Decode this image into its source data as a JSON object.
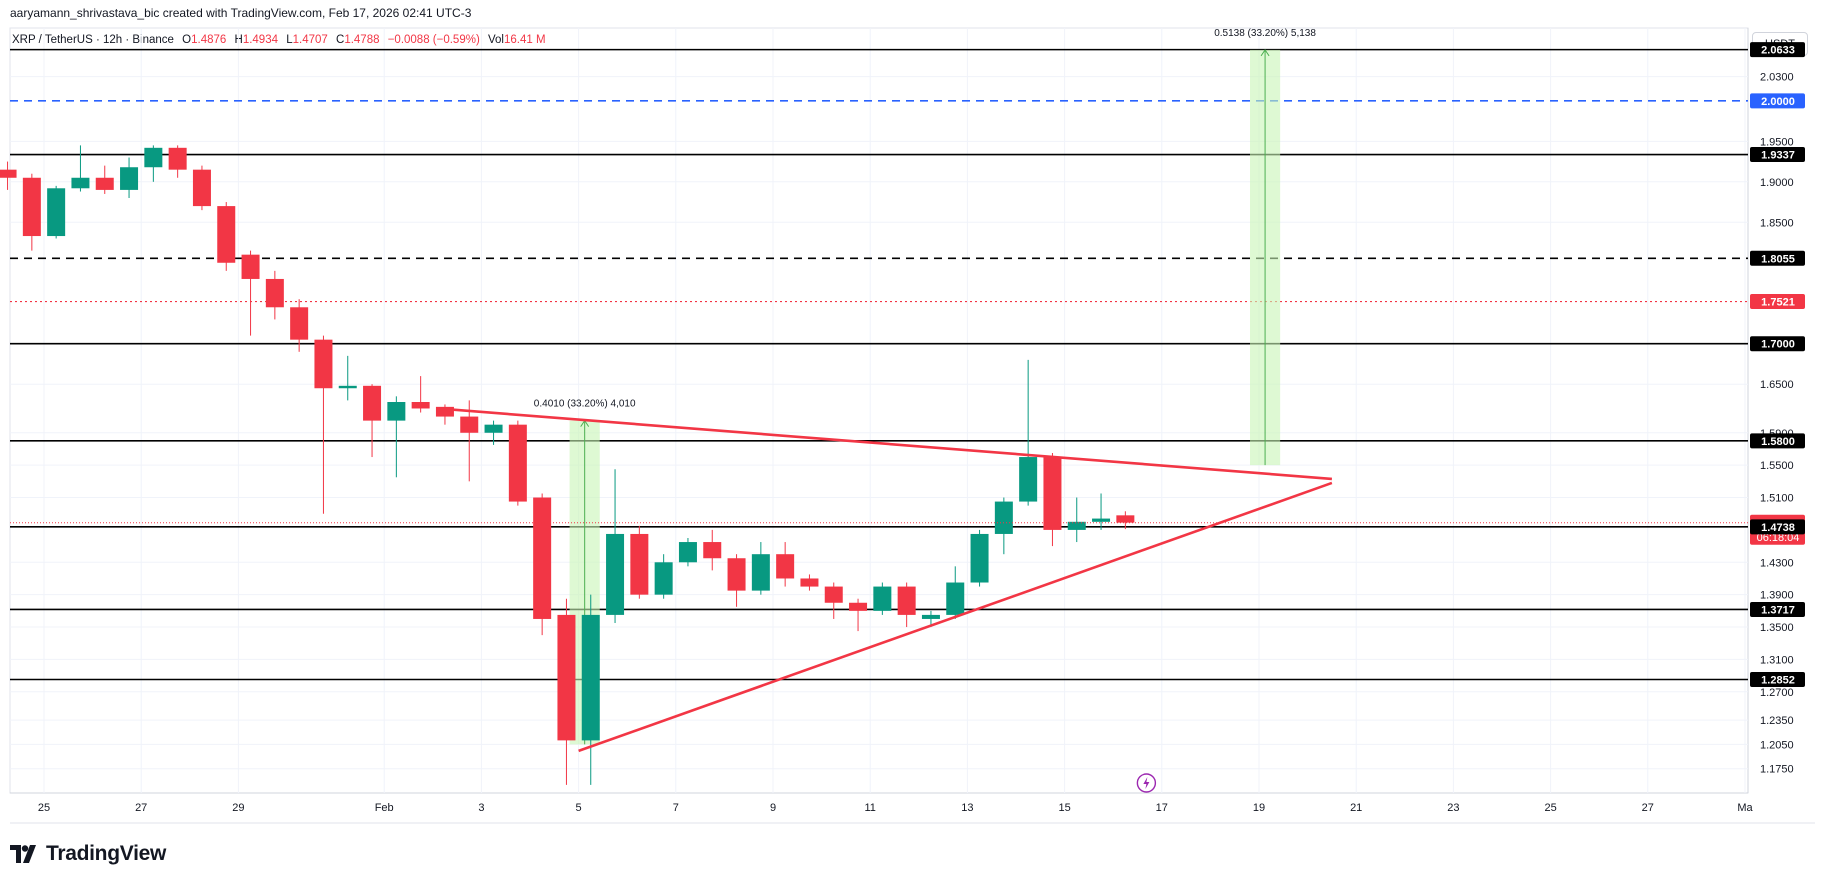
{
  "attribution": "aaryamann_shrivastava_bic created with TradingView.com, Feb 17, 2026 02:41 UTC-3",
  "legend": {
    "symbol": "XRP / TetherUS · 12h · Binance",
    "o_label": "O",
    "o": "1.4876",
    "h_label": "H",
    "h": "1.4934",
    "l_label": "L",
    "l": "1.4707",
    "c_label": "C",
    "c": "1.4788",
    "change": "−0.0088 (−0.59%)",
    "vol_label": "Vol",
    "vol": "16.41 M"
  },
  "currency": "USDT",
  "brand": "TradingView",
  "colors": {
    "up": "#089981",
    "down": "#f23645",
    "trend": "#f23645",
    "level": "#000000",
    "blue_level": "#2962ff",
    "red_level": "#f23645",
    "measure_fill": "#c8f5b5",
    "measure_line": "#4caf50"
  },
  "chart_data": {
    "type": "candlestick",
    "symbol": "XRP / TetherUS",
    "interval": "12h",
    "ylim": [
      1.145,
      2.09
    ],
    "y_ticks": [
      "1.1750",
      "1.2050",
      "1.2350",
      "1.2700",
      "1.3100",
      "1.3500",
      "1.3900",
      "1.4300",
      "1.5100",
      "1.5500",
      "1.5900",
      "1.6500",
      "1.8500",
      "1.9000",
      "1.9500",
      "2.0300"
    ],
    "x_ticks": [
      {
        "label": "25",
        "d": 0
      },
      {
        "label": "27",
        "d": 2
      },
      {
        "label": "29",
        "d": 4
      },
      {
        "label": "Feb",
        "d": 7
      },
      {
        "label": "3",
        "d": 9
      },
      {
        "label": "5",
        "d": 11
      },
      {
        "label": "7",
        "d": 13
      },
      {
        "label": "9",
        "d": 15
      },
      {
        "label": "11",
        "d": 17
      },
      {
        "label": "13",
        "d": 19
      },
      {
        "label": "15",
        "d": 21
      },
      {
        "label": "17",
        "d": 23
      },
      {
        "label": "19",
        "d": 25
      },
      {
        "label": "21",
        "d": 27
      },
      {
        "label": "23",
        "d": 29
      },
      {
        "label": "25",
        "d": 31
      },
      {
        "label": "27",
        "d": 33
      },
      {
        "label": "Ma",
        "d": 35
      }
    ],
    "candles": [
      {
        "d": -0.75,
        "o": 1.915,
        "h": 1.925,
        "l": 1.89,
        "c": 1.905
      },
      {
        "d": -0.25,
        "o": 1.905,
        "h": 1.91,
        "l": 1.815,
        "c": 1.833
      },
      {
        "d": 0.25,
        "o": 1.833,
        "h": 1.895,
        "l": 1.83,
        "c": 1.892
      },
      {
        "d": 0.75,
        "o": 1.892,
        "h": 1.945,
        "l": 1.888,
        "c": 1.905
      },
      {
        "d": 1.25,
        "o": 1.905,
        "h": 1.92,
        "l": 1.885,
        "c": 1.89
      },
      {
        "d": 1.75,
        "o": 1.89,
        "h": 1.93,
        "l": 1.88,
        "c": 1.918
      },
      {
        "d": 2.25,
        "o": 1.918,
        "h": 1.945,
        "l": 1.9,
        "c": 1.942
      },
      {
        "d": 2.75,
        "o": 1.942,
        "h": 1.945,
        "l": 1.905,
        "c": 1.915
      },
      {
        "d": 3.25,
        "o": 1.915,
        "h": 1.92,
        "l": 1.865,
        "c": 1.87
      },
      {
        "d": 3.75,
        "o": 1.87,
        "h": 1.875,
        "l": 1.79,
        "c": 1.8
      },
      {
        "d": 4.25,
        "o": 1.81,
        "h": 1.815,
        "l": 1.71,
        "c": 1.78
      },
      {
        "d": 4.75,
        "o": 1.78,
        "h": 1.79,
        "l": 1.73,
        "c": 1.745
      },
      {
        "d": 5.25,
        "o": 1.745,
        "h": 1.755,
        "l": 1.69,
        "c": 1.705
      },
      {
        "d": 5.75,
        "o": 1.705,
        "h": 1.71,
        "l": 1.49,
        "c": 1.645
      },
      {
        "d": 6.25,
        "o": 1.645,
        "h": 1.685,
        "l": 1.63,
        "c": 1.648
      },
      {
        "d": 6.75,
        "o": 1.648,
        "h": 1.65,
        "l": 1.56,
        "c": 1.605
      },
      {
        "d": 7.25,
        "o": 1.605,
        "h": 1.635,
        "l": 1.535,
        "c": 1.628
      },
      {
        "d": 7.75,
        "o": 1.628,
        "h": 1.66,
        "l": 1.615,
        "c": 1.62
      },
      {
        "d": 8.25,
        "o": 1.622,
        "h": 1.625,
        "l": 1.6,
        "c": 1.61
      },
      {
        "d": 8.75,
        "o": 1.61,
        "h": 1.63,
        "l": 1.53,
        "c": 1.59
      },
      {
        "d": 9.25,
        "o": 1.59,
        "h": 1.605,
        "l": 1.575,
        "c": 1.6
      },
      {
        "d": 9.75,
        "o": 1.6,
        "h": 1.605,
        "l": 1.5,
        "c": 1.505
      },
      {
        "d": 10.25,
        "o": 1.51,
        "h": 1.515,
        "l": 1.34,
        "c": 1.36
      },
      {
        "d": 10.75,
        "o": 1.365,
        "h": 1.385,
        "l": 1.155,
        "c": 1.21
      },
      {
        "d": 11.25,
        "o": 1.21,
        "h": 1.39,
        "l": 1.155,
        "c": 1.365
      },
      {
        "d": 11.75,
        "o": 1.365,
        "h": 1.545,
        "l": 1.355,
        "c": 1.465
      },
      {
        "d": 12.25,
        "o": 1.465,
        "h": 1.475,
        "l": 1.385,
        "c": 1.39
      },
      {
        "d": 12.75,
        "o": 1.39,
        "h": 1.44,
        "l": 1.385,
        "c": 1.43
      },
      {
        "d": 13.25,
        "o": 1.43,
        "h": 1.46,
        "l": 1.425,
        "c": 1.455
      },
      {
        "d": 13.75,
        "o": 1.455,
        "h": 1.47,
        "l": 1.42,
        "c": 1.435
      },
      {
        "d": 14.25,
        "o": 1.435,
        "h": 1.44,
        "l": 1.375,
        "c": 1.395
      },
      {
        "d": 14.75,
        "o": 1.395,
        "h": 1.455,
        "l": 1.39,
        "c": 1.44
      },
      {
        "d": 15.25,
        "o": 1.44,
        "h": 1.455,
        "l": 1.4,
        "c": 1.41
      },
      {
        "d": 15.75,
        "o": 1.41,
        "h": 1.415,
        "l": 1.395,
        "c": 1.4
      },
      {
        "d": 16.25,
        "o": 1.4,
        "h": 1.405,
        "l": 1.36,
        "c": 1.38
      },
      {
        "d": 16.75,
        "o": 1.38,
        "h": 1.385,
        "l": 1.345,
        "c": 1.37
      },
      {
        "d": 17.25,
        "o": 1.37,
        "h": 1.405,
        "l": 1.365,
        "c": 1.4
      },
      {
        "d": 17.75,
        "o": 1.4,
        "h": 1.405,
        "l": 1.35,
        "c": 1.365
      },
      {
        "d": 18.25,
        "o": 1.36,
        "h": 1.37,
        "l": 1.35,
        "c": 1.365
      },
      {
        "d": 18.75,
        "o": 1.365,
        "h": 1.425,
        "l": 1.36,
        "c": 1.405
      },
      {
        "d": 19.25,
        "o": 1.405,
        "h": 1.47,
        "l": 1.4,
        "c": 1.465
      },
      {
        "d": 19.75,
        "o": 1.465,
        "h": 1.51,
        "l": 1.44,
        "c": 1.505
      },
      {
        "d": 20.25,
        "o": 1.505,
        "h": 1.68,
        "l": 1.5,
        "c": 1.56
      },
      {
        "d": 20.75,
        "o": 1.56,
        "h": 1.565,
        "l": 1.45,
        "c": 1.47
      },
      {
        "d": 21.25,
        "o": 1.47,
        "h": 1.51,
        "l": 1.455,
        "c": 1.48
      },
      {
        "d": 21.75,
        "o": 1.48,
        "h": 1.515,
        "l": 1.47,
        "c": 1.484
      },
      {
        "d": 22.25,
        "o": 1.488,
        "h": 1.493,
        "l": 1.471,
        "c": 1.479
      }
    ],
    "levels": [
      {
        "price": 2.0633,
        "label": "2.0633",
        "style": "solid",
        "color": "#000000"
      },
      {
        "price": 2.0,
        "label": "2.0000",
        "style": "dashed",
        "color": "#2962ff"
      },
      {
        "price": 1.9337,
        "label": "1.9337",
        "style": "solid",
        "color": "#000000"
      },
      {
        "price": 1.8055,
        "label": "1.8055",
        "style": "dashed",
        "color": "#000000"
      },
      {
        "price": 1.7521,
        "label": "1.7521",
        "style": "dotted",
        "color": "#f23645"
      },
      {
        "price": 1.7,
        "label": "1.7000",
        "style": "solid",
        "color": "#000000"
      },
      {
        "price": 1.58,
        "label": "1.5800",
        "style": "solid",
        "color": "#000000"
      },
      {
        "price": 1.4738,
        "label": "1.4738",
        "style": "solid",
        "color": "#000000"
      },
      {
        "price": 1.3717,
        "label": "1.3717",
        "style": "solid",
        "color": "#000000"
      },
      {
        "price": 1.2852,
        "label": "1.2852",
        "style": "solid",
        "color": "#000000"
      }
    ],
    "last_price": {
      "price": 1.4788,
      "label": "1.4788",
      "countdown": "06:18:04"
    },
    "trendlines": [
      {
        "d1": 8.1,
        "p1": 1.62,
        "d2": 26.5,
        "p2": 1.533
      },
      {
        "d1": 11.0,
        "p1": 1.197,
        "d2": 26.5,
        "p2": 1.528
      }
    ],
    "measures": [
      {
        "d1": 11.0,
        "d2": 11.25,
        "p_from": 1.205,
        "p_to": 1.605,
        "label": "0.4010 (33.20%) 4,010"
      },
      {
        "d1": 25.0,
        "d2": 25.25,
        "p_from": 1.55,
        "p_to": 2.063,
        "label": "0.5138 (33.20%) 5,138"
      }
    ]
  }
}
